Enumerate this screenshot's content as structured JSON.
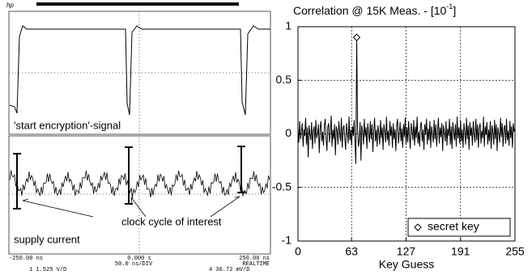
{
  "scope": {
    "logo": "hp",
    "upper_label": "'start encryption'-signal",
    "lower_label": "supply current",
    "arrow_label": "clock cycle of interest",
    "footer": {
      "left_time": "-250.00 ns",
      "center_time": "0.000  s",
      "right_time": "250.00 ns",
      "timebase": "50.0 ns/DIV",
      "mode": "REALTIME",
      "ch1": "1  1.525  V/D",
      "ch4": "4  36.72  mV/D"
    }
  },
  "chart_data": {
    "type": "line",
    "title": "Correlation @ 15K Meas. - [10",
    "title_superscript": "-1",
    "title_suffix": "]",
    "xlabel": "Key Guess",
    "xlim": [
      0,
      255
    ],
    "xticks": [
      0,
      63,
      127,
      191,
      255
    ],
    "ylim": [
      -1,
      1
    ],
    "yticks": [
      -1,
      -0.5,
      0,
      0.5,
      1
    ],
    "grid": true,
    "legend": "lower right",
    "series": [
      {
        "color": "#000000",
        "x": [
          0,
          1,
          2,
          3,
          4,
          5,
          6,
          7,
          8,
          9,
          10,
          11,
          12,
          13,
          14,
          15,
          16,
          17,
          18,
          19,
          20,
          21,
          22,
          23,
          24,
          25,
          26,
          27,
          28,
          29,
          30,
          31,
          32,
          33,
          34,
          35,
          36,
          37,
          38,
          39,
          40,
          41,
          42,
          43,
          44,
          45,
          46,
          47,
          48,
          49,
          50,
          51,
          52,
          53,
          54,
          55,
          56,
          57,
          58,
          59,
          60,
          61,
          62,
          63,
          64,
          65,
          66,
          67,
          68,
          69,
          70,
          71,
          72,
          73,
          74,
          75,
          76,
          77,
          78,
          79,
          80,
          81,
          82,
          83,
          84,
          85,
          86,
          87,
          88,
          89,
          90,
          91,
          92,
          93,
          94,
          95,
          96,
          97,
          98,
          99,
          100,
          101,
          102,
          103,
          104,
          105,
          106,
          107,
          108,
          109,
          110,
          111,
          112,
          113,
          114,
          115,
          116,
          117,
          118,
          119,
          120,
          121,
          122,
          123,
          124,
          125,
          126,
          127,
          128,
          129,
          130,
          131,
          132,
          133,
          134,
          135,
          136,
          137,
          138,
          139,
          140,
          141,
          142,
          143,
          144,
          145,
          146,
          147,
          148,
          149,
          150,
          151,
          152,
          153,
          154,
          155,
          156,
          157,
          158,
          159,
          160,
          161,
          162,
          163,
          164,
          165,
          166,
          167,
          168,
          169,
          170,
          171,
          172,
          173,
          174,
          175,
          176,
          177,
          178,
          179,
          180,
          181,
          182,
          183,
          184,
          185,
          186,
          187,
          188,
          189,
          190,
          191,
          192,
          193,
          194,
          195,
          196,
          197,
          198,
          199,
          200,
          201,
          202,
          203,
          204,
          205,
          206,
          207,
          208,
          209,
          210,
          211,
          212,
          213,
          214,
          215,
          216,
          217,
          218,
          219,
          220,
          221,
          222,
          223,
          224,
          225,
          226,
          227,
          228,
          229,
          230,
          231,
          232,
          233,
          234,
          235,
          236,
          237,
          238,
          239,
          240,
          241,
          242,
          243,
          244,
          245,
          246,
          247,
          248,
          249,
          250,
          251,
          252,
          253,
          254,
          255
        ],
        "values": [
          0.05,
          -0.08,
          0.12,
          -0.05,
          0.02,
          0.1,
          -0.12,
          0.04,
          -0.02,
          0.15,
          -0.1,
          0.06,
          -0.22,
          0.08,
          0.0,
          -0.06,
          0.11,
          -0.14,
          0.03,
          0.07,
          -0.09,
          0.13,
          -0.04,
          0.0,
          0.09,
          -0.18,
          0.05,
          0.12,
          -0.07,
          0.02,
          -0.11,
          0.08,
          0.14,
          -0.03,
          -0.16,
          0.06,
          0.1,
          -0.08,
          0.01,
          0.17,
          -0.12,
          0.04,
          -0.05,
          0.09,
          -0.2,
          0.07,
          0.03,
          -0.1,
          0.12,
          0.0,
          -0.07,
          0.15,
          -0.13,
          0.05,
          0.08,
          -0.04,
          -0.15,
          0.1,
          0.02,
          -0.09,
          0.16,
          -0.06,
          0.04,
          -0.11,
          0.07,
          -0.02,
          0.13,
          -0.08,
          -0.28,
          0.9,
          0.05,
          -0.12,
          -0.06,
          0.11,
          -0.25,
          0.08,
          0.02,
          -0.1,
          0.14,
          -0.03,
          0.06,
          -0.14,
          0.1,
          0.0,
          -0.08,
          0.12,
          -0.05,
          0.09,
          -0.17,
          0.03,
          0.15,
          -0.07,
          0.04,
          -0.12,
          0.08,
          0.01,
          -0.1,
          0.13,
          -0.04,
          0.06,
          -0.15,
          0.09,
          0.02,
          -0.08,
          0.16,
          -0.06,
          0.03,
          -0.11,
          0.12,
          -0.02,
          0.07,
          -0.13,
          0.1,
          -0.05,
          0.04,
          -0.16,
          0.08,
          0.14,
          -0.09,
          0.0,
          0.11,
          -0.07,
          0.05,
          -0.13,
          0.09,
          -0.03,
          0.15,
          -0.1,
          0.06,
          -0.08,
          0.12,
          -0.02,
          -0.14,
          0.1,
          0.03,
          -0.06,
          0.13,
          -0.11,
          0.07,
          -0.04,
          0.16,
          -0.09,
          0.02,
          -0.12,
          0.08,
          0.11,
          -0.07,
          0.04,
          -0.15,
          0.09,
          -0.01,
          0.14,
          -0.1,
          0.05,
          -0.06,
          0.12,
          -0.13,
          0.07,
          0.0,
          -0.08,
          0.13,
          -0.05,
          0.09,
          -0.12,
          0.03,
          0.15,
          -0.09,
          0.06,
          -0.03,
          0.1,
          -0.16,
          0.08,
          0.02,
          -0.07,
          0.12,
          -0.11,
          0.05,
          -0.02,
          0.14,
          -0.1,
          0.07,
          -0.14,
          0.11,
          0.01,
          -0.06,
          0.09,
          -0.12,
          0.16,
          -0.04,
          0.06,
          -0.09,
          0.13,
          -0.07,
          0.04,
          -0.13,
          0.1,
          0.02,
          -0.1,
          0.15,
          -0.05,
          0.08,
          -0.15,
          0.11,
          -0.02,
          0.06,
          -0.11,
          0.12,
          0.0,
          -0.08,
          0.14,
          -0.06,
          0.09,
          -0.13,
          0.05,
          0.1,
          -0.09,
          0.03,
          -0.04,
          0.16,
          -0.12,
          0.07,
          -0.01,
          0.11,
          -0.1,
          0.04,
          -0.07,
          0.12,
          -0.14,
          0.08,
          0.02,
          -0.1,
          0.13,
          -0.05,
          0.09,
          -0.16,
          0.06,
          0.0,
          -0.08,
          0.15,
          -0.03,
          0.1,
          -0.12,
          0.05,
          0.08,
          -0.09,
          0.14,
          -0.06,
          0.03,
          -0.11,
          0.12,
          -0.04,
          0.07,
          -0.13,
          0.1,
          0.02,
          0.05
        ]
      },
      {
        "name": "secret key",
        "color": "#000000",
        "marker": "diamond",
        "x": [
          69
        ],
        "values": [
          0.9
        ]
      }
    ]
  }
}
